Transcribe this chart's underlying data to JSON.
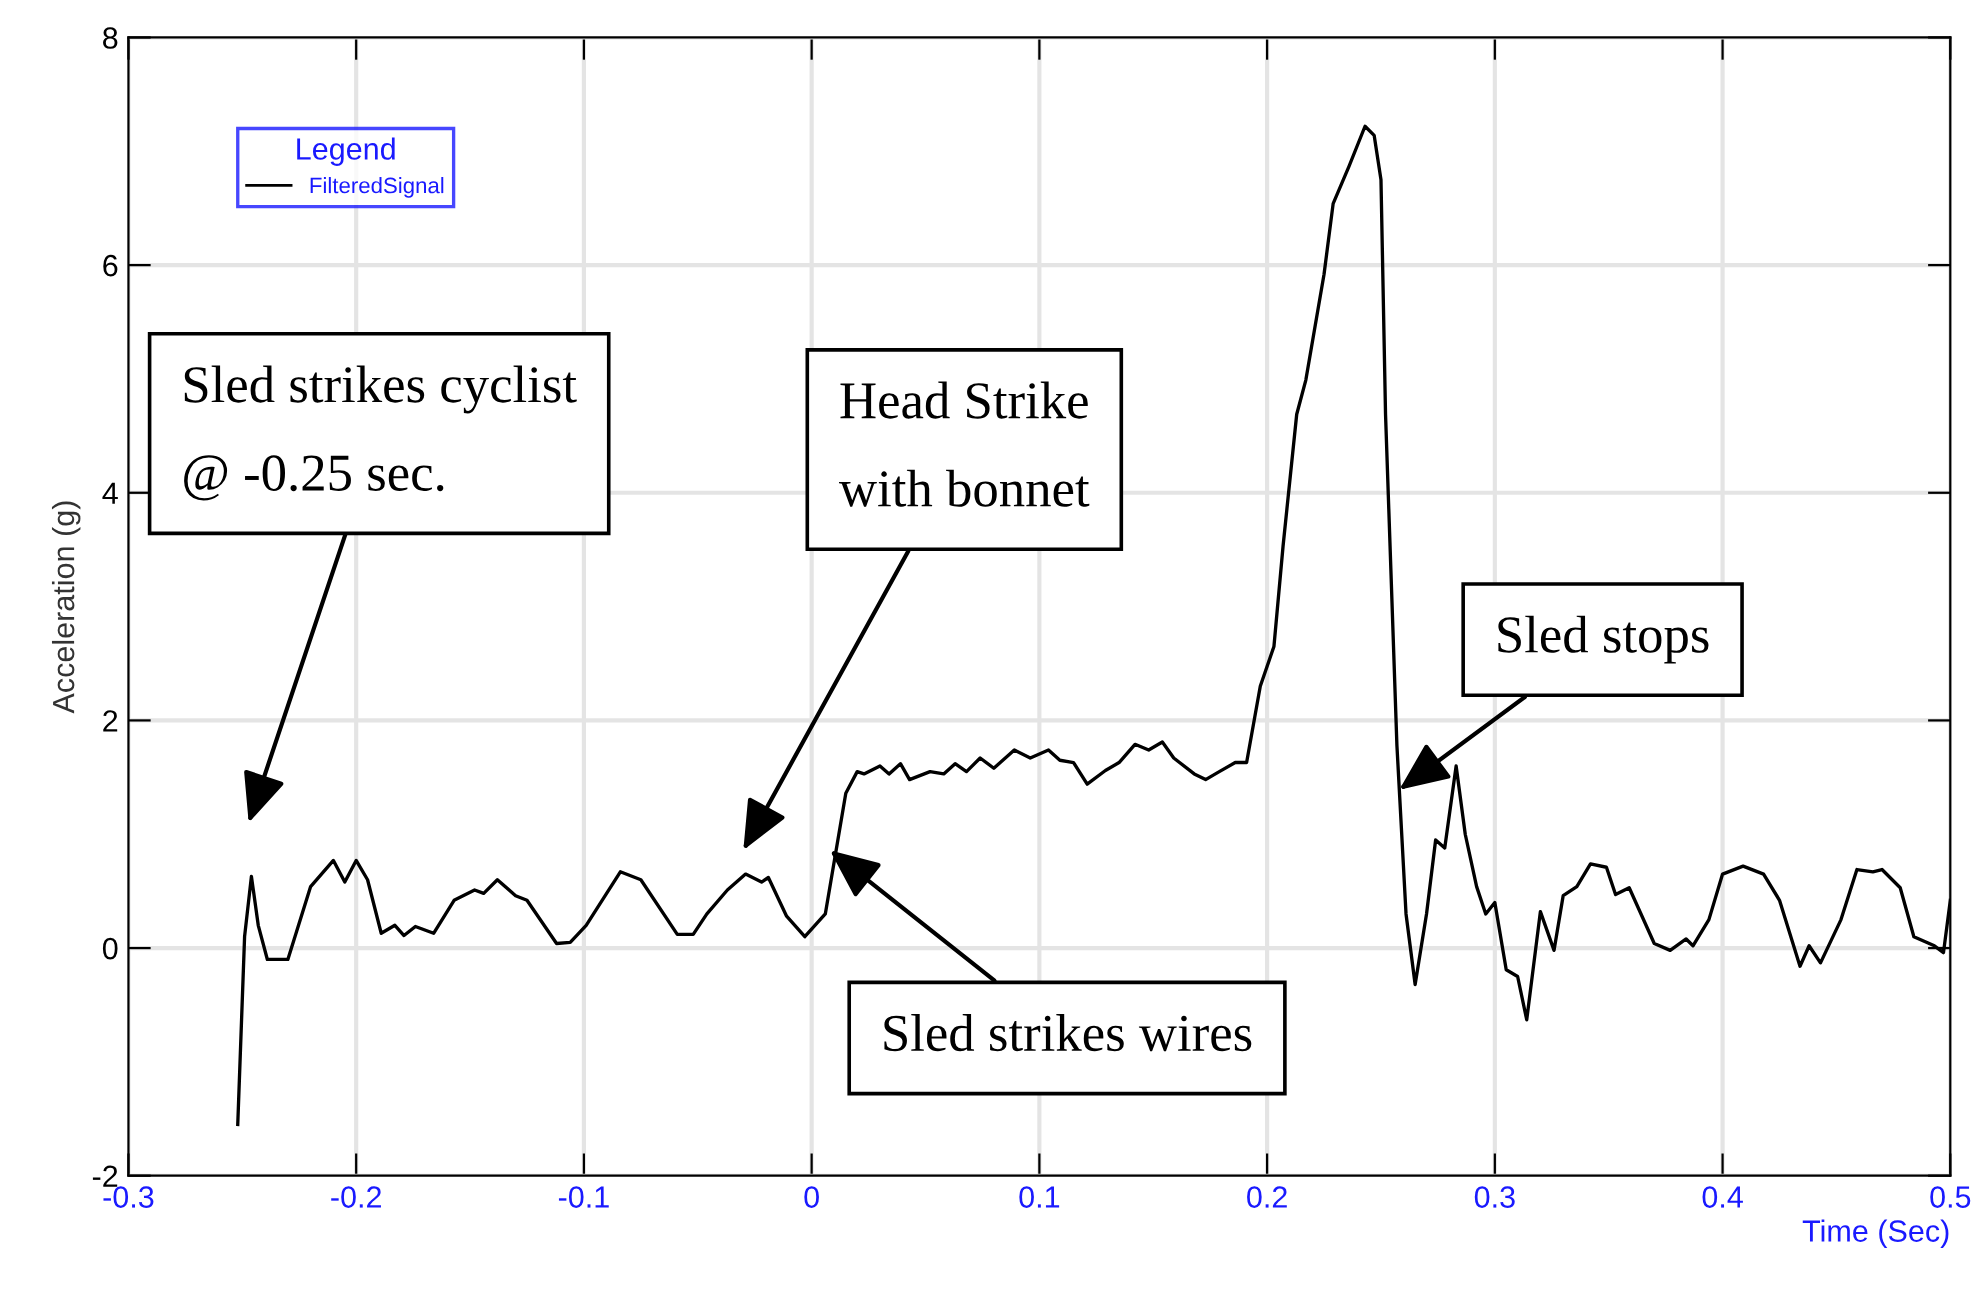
{
  "chart_data": {
    "type": "line",
    "xlabel": "Time (Sec)",
    "ylabel": "Acceleration (g)",
    "legend_title": "Legend",
    "xlim": [
      -0.3,
      0.5
    ],
    "xticks": [
      -0.3,
      -0.2,
      -0.1,
      0,
      0.1,
      0.2,
      0.3,
      0.4,
      0.5
    ],
    "ylim": [
      -2,
      8
    ],
    "yticks": [
      -2,
      0,
      2,
      4,
      6,
      8
    ],
    "grid": true,
    "legend": "top left",
    "series": [
      {
        "name": "FilteredSignal",
        "color": "#000000",
        "x": [
          -0.252,
          -0.249,
          -0.246,
          -0.243,
          -0.239,
          -0.23,
          -0.22,
          -0.21,
          -0.205,
          -0.2,
          -0.195,
          -0.189,
          -0.183,
          -0.179,
          -0.174,
          -0.166,
          -0.157,
          -0.148,
          -0.144,
          -0.138,
          -0.13,
          -0.125,
          -0.112,
          -0.106,
          -0.099,
          -0.084,
          -0.075,
          -0.059,
          -0.052,
          -0.046,
          -0.037,
          -0.029,
          -0.022,
          -0.019,
          -0.011,
          -0.003,
          0.006,
          0.015,
          0.02,
          0.023,
          0.03,
          0.034,
          0.039,
          0.043,
          0.052,
          0.058,
          0.063,
          0.068,
          0.074,
          0.08,
          0.089,
          0.096,
          0.104,
          0.109,
          0.115,
          0.121,
          0.129,
          0.135,
          0.142,
          0.148,
          0.154,
          0.159,
          0.168,
          0.173,
          0.179,
          0.186,
          0.191,
          0.197,
          0.203,
          0.207,
          0.213,
          0.217,
          0.225,
          0.229,
          0.236,
          0.243,
          0.247,
          0.25,
          0.252,
          0.257,
          0.261,
          0.265,
          0.27,
          0.274,
          0.278,
          0.283,
          0.287,
          0.292,
          0.296,
          0.3,
          0.305,
          0.31,
          0.314,
          0.32,
          0.326,
          0.33,
          0.336,
          0.342,
          0.349,
          0.353,
          0.359,
          0.37,
          0.377,
          0.384,
          0.387,
          0.394,
          0.4,
          0.409,
          0.418,
          0.425,
          0.434,
          0.438,
          0.443,
          0.452,
          0.459,
          0.466,
          0.47,
          0.478,
          0.484,
          0.493,
          0.497,
          0.5
        ],
        "values": [
          -1.55,
          0.1,
          0.63,
          0.2,
          -0.1,
          -0.1,
          0.54,
          0.77,
          0.58,
          0.77,
          0.6,
          0.13,
          0.2,
          0.11,
          0.19,
          0.13,
          0.42,
          0.51,
          0.48,
          0.6,
          0.46,
          0.42,
          0.04,
          0.05,
          0.2,
          0.67,
          0.6,
          0.12,
          0.12,
          0.3,
          0.51,
          0.65,
          0.58,
          0.62,
          0.28,
          0.1,
          0.3,
          1.36,
          1.55,
          1.53,
          1.6,
          1.53,
          1.62,
          1.48,
          1.55,
          1.53,
          1.62,
          1.55,
          1.67,
          1.58,
          1.74,
          1.67,
          1.74,
          1.65,
          1.63,
          1.44,
          1.56,
          1.63,
          1.79,
          1.74,
          1.81,
          1.67,
          1.53,
          1.48,
          1.55,
          1.63,
          1.63,
          2.3,
          2.65,
          3.53,
          4.69,
          4.99,
          5.92,
          6.54,
          6.87,
          7.22,
          7.14,
          6.75,
          4.69,
          1.78,
          0.3,
          -0.32,
          0.3,
          0.95,
          0.88,
          1.6,
          1.0,
          0.54,
          0.3,
          0.4,
          -0.19,
          -0.25,
          -0.63,
          0.32,
          -0.02,
          0.46,
          0.54,
          0.74,
          0.71,
          0.47,
          0.53,
          0.04,
          -0.02,
          0.08,
          0.02,
          0.25,
          0.65,
          0.72,
          0.65,
          0.42,
          -0.16,
          0.02,
          -0.13,
          0.25,
          0.69,
          0.67,
          0.69,
          0.53,
          0.1,
          0.02,
          -0.04,
          0.42
        ]
      }
    ],
    "annotations": [
      "Sled strikes cyclist\n@ -0.25 sec.",
      "Head Strike\nwith bonnet",
      {
        "text": "Sled strikes wires",
        "x": 0.008,
        "y": 0.86
      },
      {
        "text": "Sled stops",
        "x": 0.258,
        "y": 1.39
      }
    ]
  }
}
